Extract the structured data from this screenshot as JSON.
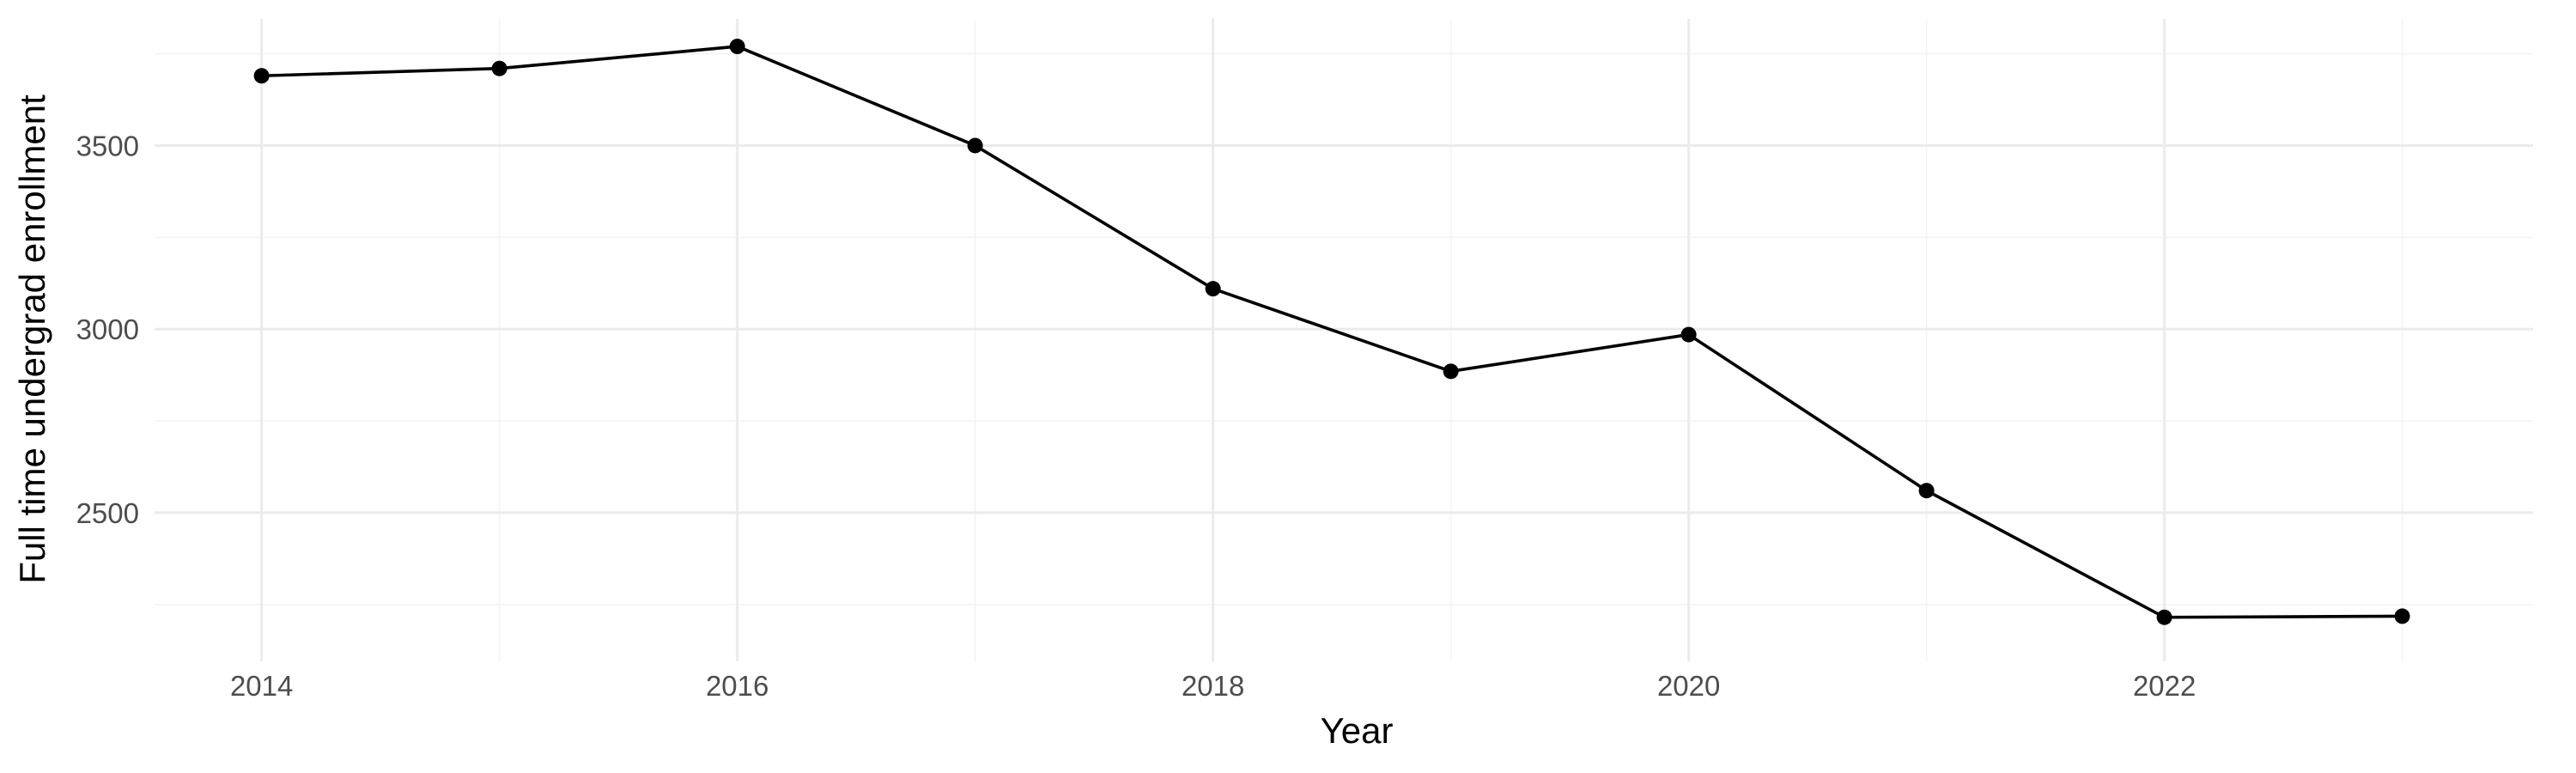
{
  "chart_data": {
    "type": "line",
    "title": "",
    "xlabel": "Year",
    "ylabel": "Full time undergrad enrollment",
    "x": [
      2014,
      2015,
      2016,
      2017,
      2018,
      2019,
      2020,
      2021,
      2022,
      2023
    ],
    "series": [
      {
        "values": [
          3690,
          3710,
          3770,
          3500,
          3110,
          2885,
          2985,
          2560,
          2215,
          2218
        ]
      }
    ],
    "x_ticks": [
      2014,
      2016,
      2018,
      2020,
      2022
    ],
    "y_ticks": [
      2500,
      3000,
      3500
    ],
    "xlim": [
      2013.55,
      2023.55
    ],
    "ylim": [
      2095,
      3845
    ],
    "grid": true,
    "legend": "none",
    "colors": {
      "line": "#000000",
      "point": "#000000",
      "grid_major": "#ebebeb",
      "grid_minor": "#f3f3f3",
      "tick_text": "#4d4d4d",
      "background": "#ffffff"
    }
  }
}
